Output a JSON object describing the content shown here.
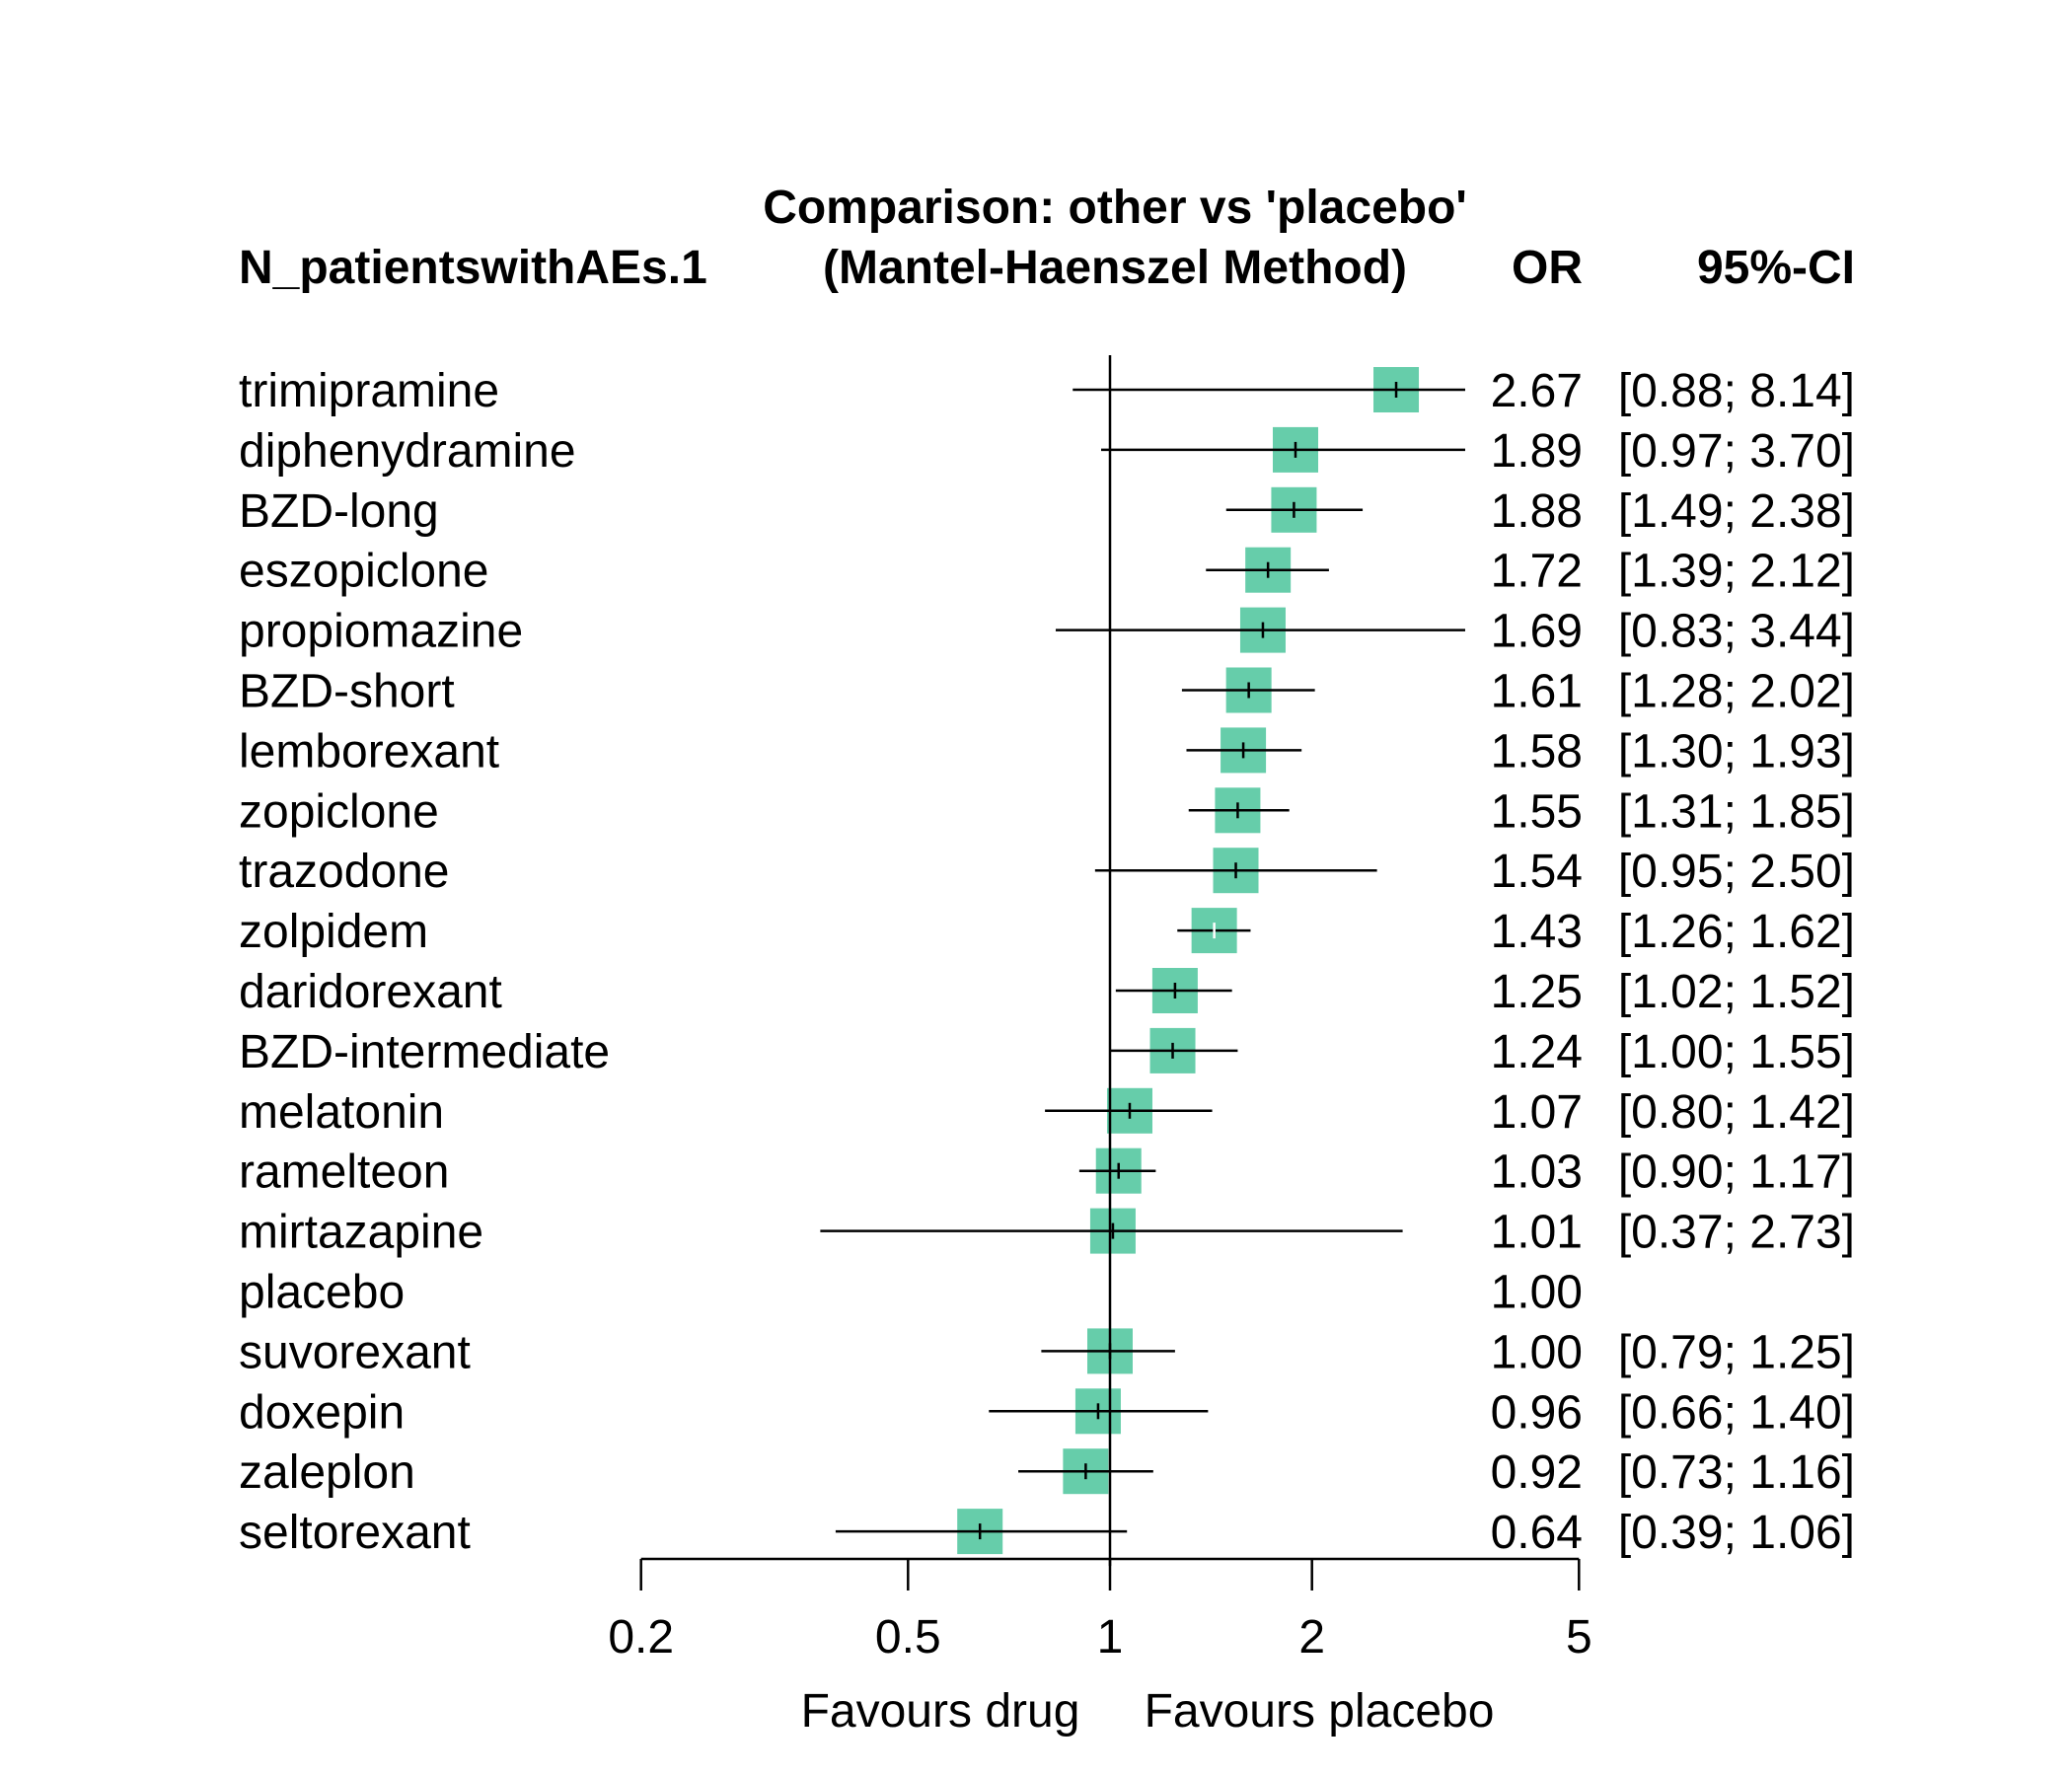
{
  "chart_data": {
    "type": "forest",
    "title": "Comparison: other vs 'placebo'",
    "subtitle": "(Mantel-Haenszel Method)",
    "outcome_label": "N_patientswithAEs.1",
    "col_or_label": "OR",
    "col_ci_label": "95%-CI",
    "x_scale": "log",
    "x_ticks": [
      0.2,
      0.5,
      1,
      2,
      5
    ],
    "x_tick_labels": [
      "0.2",
      "0.5",
      "1",
      "2",
      "5"
    ],
    "xlim": [
      0.2,
      5
    ],
    "reference_line": 1,
    "left_label": "Favours drug",
    "right_label": "Favours placebo",
    "marker_color": "#66CDAA",
    "rows": [
      {
        "name": "trimipramine",
        "or": 2.67,
        "lower": 0.88,
        "upper": 8.14,
        "or_text": "2.67",
        "ci_text": "[0.88; 8.14]"
      },
      {
        "name": "diphenydramine",
        "or": 1.89,
        "lower": 0.97,
        "upper": 3.7,
        "or_text": "1.89",
        "ci_text": "[0.97; 3.70]"
      },
      {
        "name": "BZD-long",
        "or": 1.88,
        "lower": 1.49,
        "upper": 2.38,
        "or_text": "1.88",
        "ci_text": "[1.49; 2.38]"
      },
      {
        "name": "eszopiclone",
        "or": 1.72,
        "lower": 1.39,
        "upper": 2.12,
        "or_text": "1.72",
        "ci_text": "[1.39; 2.12]"
      },
      {
        "name": "propiomazine",
        "or": 1.69,
        "lower": 0.83,
        "upper": 3.44,
        "or_text": "1.69",
        "ci_text": "[0.83; 3.44]"
      },
      {
        "name": "BZD-short",
        "or": 1.61,
        "lower": 1.28,
        "upper": 2.02,
        "or_text": "1.61",
        "ci_text": "[1.28; 2.02]"
      },
      {
        "name": "lemborexant",
        "or": 1.58,
        "lower": 1.3,
        "upper": 1.93,
        "or_text": "1.58",
        "ci_text": "[1.30; 1.93]"
      },
      {
        "name": "zopiclone",
        "or": 1.55,
        "lower": 1.31,
        "upper": 1.85,
        "or_text": "1.55",
        "ci_text": "[1.31; 1.85]"
      },
      {
        "name": "trazodone",
        "or": 1.54,
        "lower": 0.95,
        "upper": 2.5,
        "or_text": "1.54",
        "ci_text": "[0.95; 2.50]"
      },
      {
        "name": "zolpidem",
        "or": 1.43,
        "lower": 1.26,
        "upper": 1.62,
        "or_text": "1.43",
        "ci_text": "[1.26; 1.62]"
      },
      {
        "name": "daridorexant",
        "or": 1.25,
        "lower": 1.02,
        "upper": 1.52,
        "or_text": "1.25",
        "ci_text": "[1.02; 1.52]"
      },
      {
        "name": "BZD-intermediate",
        "or": 1.24,
        "lower": 1.0,
        "upper": 1.55,
        "or_text": "1.24",
        "ci_text": "[1.00; 1.55]"
      },
      {
        "name": "melatonin",
        "or": 1.07,
        "lower": 0.8,
        "upper": 1.42,
        "or_text": "1.07",
        "ci_text": "[0.80; 1.42]"
      },
      {
        "name": "ramelteon",
        "or": 1.03,
        "lower": 0.9,
        "upper": 1.17,
        "or_text": "1.03",
        "ci_text": "[0.90; 1.17]"
      },
      {
        "name": "mirtazapine",
        "or": 1.01,
        "lower": 0.37,
        "upper": 2.73,
        "or_text": "1.01",
        "ci_text": "[0.37; 2.73]"
      },
      {
        "name": "placebo",
        "or": 1.0,
        "lower": null,
        "upper": null,
        "or_text": "1.00",
        "ci_text": ""
      },
      {
        "name": "suvorexant",
        "or": 1.0,
        "lower": 0.79,
        "upper": 1.25,
        "or_text": "1.00",
        "ci_text": "[0.79; 1.25]"
      },
      {
        "name": "doxepin",
        "or": 0.96,
        "lower": 0.66,
        "upper": 1.4,
        "or_text": "0.96",
        "ci_text": "[0.66; 1.40]"
      },
      {
        "name": "zaleplon",
        "or": 0.92,
        "lower": 0.73,
        "upper": 1.16,
        "or_text": "0.92",
        "ci_text": "[0.73; 1.16]"
      },
      {
        "name": "seltorexant",
        "or": 0.64,
        "lower": 0.39,
        "upper": 1.06,
        "or_text": "0.64",
        "ci_text": "[0.39; 1.06]"
      }
    ]
  }
}
